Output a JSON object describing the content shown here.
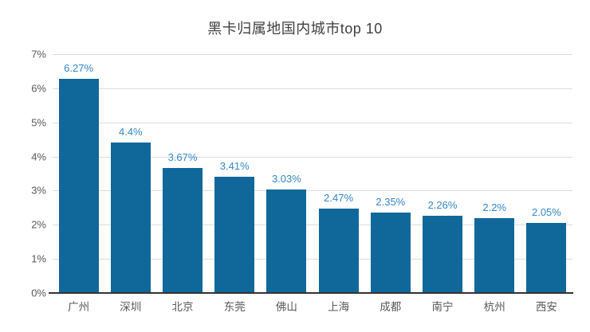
{
  "chart_data": {
    "type": "bar",
    "title": "黑卡归属地国内城市top 10",
    "categories": [
      "广州",
      "深圳",
      "北京",
      "东莞",
      "佛山",
      "上海",
      "成都",
      "南宁",
      "杭州",
      "西安"
    ],
    "values": [
      6.27,
      4.4,
      3.67,
      3.41,
      3.03,
      2.47,
      2.35,
      2.26,
      2.2,
      2.05
    ],
    "value_labels": [
      "6.27%",
      "4.4%",
      "3.67%",
      "3.41%",
      "3.03%",
      "2.47%",
      "2.35%",
      "2.26%",
      "2.2%",
      "2.05%"
    ],
    "xlabel": "",
    "ylabel": "",
    "ylim": [
      0,
      7
    ],
    "y_ticks": [
      "0%",
      "1%",
      "2%",
      "3%",
      "4%",
      "5%",
      "6%",
      "7%"
    ],
    "grid": "horizontal",
    "legend": "none",
    "colors": {
      "bar": "#10689a",
      "value_label": "#3486c7",
      "axis_text": "#595959",
      "title_text": "#404040",
      "gridline": "#dcdcdc",
      "axis_line": "#333333",
      "background": "#ffffff"
    }
  }
}
